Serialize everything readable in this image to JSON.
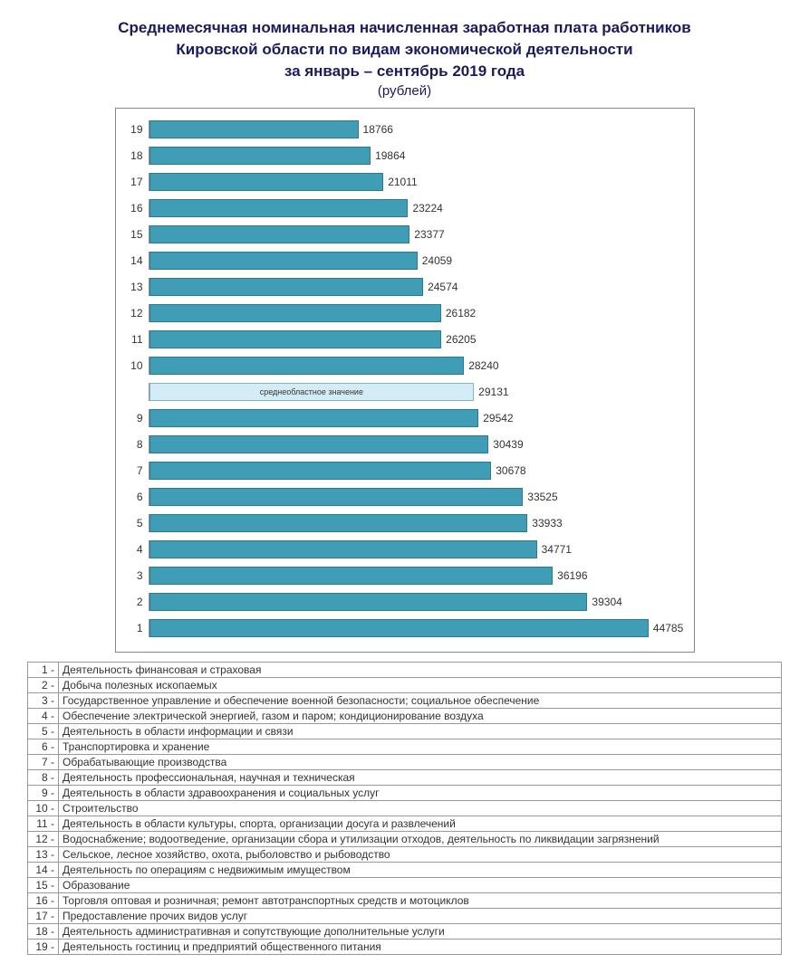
{
  "title_line1": "Среднемесячная номинальная начисленная заработная плата работников",
  "title_line2": "Кировской области по видам экономической деятельности",
  "title_line3": "за январь – сентябрь 2019 года",
  "subtitle": "(рублей)",
  "chart": {
    "type": "horizontal-bar",
    "xmax": 48000,
    "bar_color": "#3f9eb5",
    "bar_border": "#2d7a8e",
    "avg_color": "#d4ecf5",
    "avg_border": "#7fb8cc",
    "text_color": "#333333",
    "background": "#ffffff",
    "border_color": "#888888",
    "bars": [
      {
        "label": "19",
        "value": 18766,
        "is_avg": false
      },
      {
        "label": "18",
        "value": 19864,
        "is_avg": false
      },
      {
        "label": "17",
        "value": 21011,
        "is_avg": false
      },
      {
        "label": "16",
        "value": 23224,
        "is_avg": false
      },
      {
        "label": "15",
        "value": 23377,
        "is_avg": false
      },
      {
        "label": "14",
        "value": 24059,
        "is_avg": false
      },
      {
        "label": "13",
        "value": 24574,
        "is_avg": false
      },
      {
        "label": "12",
        "value": 26182,
        "is_avg": false
      },
      {
        "label": "11",
        "value": 26205,
        "is_avg": false
      },
      {
        "label": "10",
        "value": 28240,
        "is_avg": false
      },
      {
        "label": "",
        "value": 29131,
        "is_avg": true,
        "inner_label": "среднеобластное значение"
      },
      {
        "label": "9",
        "value": 29542,
        "is_avg": false
      },
      {
        "label": "8",
        "value": 30439,
        "is_avg": false
      },
      {
        "label": "7",
        "value": 30678,
        "is_avg": false
      },
      {
        "label": "6",
        "value": 33525,
        "is_avg": false
      },
      {
        "label": "5",
        "value": 33933,
        "is_avg": false
      },
      {
        "label": "4",
        "value": 34771,
        "is_avg": false
      },
      {
        "label": "3",
        "value": 36196,
        "is_avg": false
      },
      {
        "label": "2",
        "value": 39304,
        "is_avg": false
      },
      {
        "label": "1",
        "value": 44785,
        "is_avg": false
      }
    ]
  },
  "legend": [
    {
      "num": "1 -",
      "text": "Деятельность финансовая и страховая"
    },
    {
      "num": "2 -",
      "text": "Добыча полезных ископаемых"
    },
    {
      "num": "3 -",
      "text": "Государственное управление и обеспечение военной безопасности; социальное обеспечение"
    },
    {
      "num": "4 -",
      "text": "Обеспечение электрической энергией, газом и паром; кондиционирование воздуха"
    },
    {
      "num": "5 -",
      "text": "Деятельность в области информации и связи"
    },
    {
      "num": "6 -",
      "text": "Транспортировка и хранение"
    },
    {
      "num": "7 -",
      "text": "Обрабатывающие производства"
    },
    {
      "num": "8 -",
      "text": "Деятельность профессиональная, научная и техническая"
    },
    {
      "num": "9 -",
      "text": "Деятельность в области здравоохранения и социальных услуг"
    },
    {
      "num": "10 -",
      "text": "Строительство"
    },
    {
      "num": "11 -",
      "text": "Деятельность в области культуры, спорта, организации досуга и развлечений"
    },
    {
      "num": "12 -",
      "text": "Водоснабжение; водоотведение, организации сбора и утилизации отходов, деятельность по ликвидации загрязнений"
    },
    {
      "num": "13 -",
      "text": "Сельское, лесное хозяйство, охота, рыболовство и рыбоводство"
    },
    {
      "num": "14 -",
      "text": "Деятельность по операциям с недвижимым имуществом"
    },
    {
      "num": "15 -",
      "text": "Образование"
    },
    {
      "num": "16 -",
      "text": "Торговля оптовая и розничная; ремонт автотранспортных средств и мотоциклов"
    },
    {
      "num": "17 -",
      "text": "Предоставление прочих видов услуг"
    },
    {
      "num": "18 -",
      "text": "Деятельность административная и сопутствующие дополнительные услуги"
    },
    {
      "num": "19 -",
      "text": "Деятельность гостиниц и предприятий общественного питания"
    }
  ]
}
